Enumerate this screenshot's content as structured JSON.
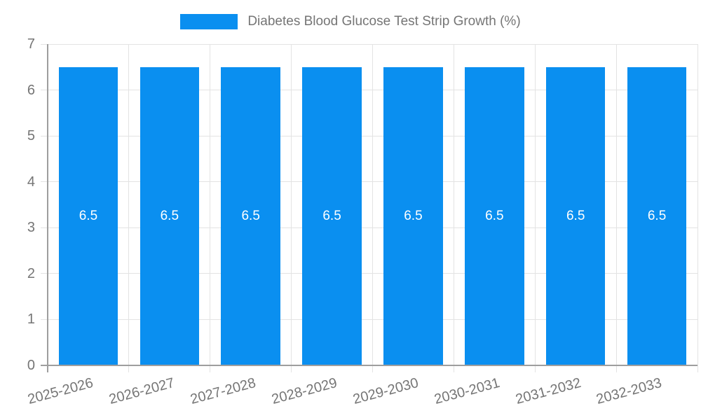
{
  "chart_data": {
    "type": "bar",
    "title": "Diabetes Blood Glucose Test Strip Growth (%)",
    "categories": [
      "2025-2026",
      "2026-2027",
      "2027-2028",
      "2028-2029",
      "2029-2030",
      "2030-2031",
      "2031-2032",
      "2032-2033"
    ],
    "values": [
      6.5,
      6.5,
      6.5,
      6.5,
      6.5,
      6.5,
      6.5,
      6.5
    ],
    "bar_value_labels": [
      "6.5",
      "6.5",
      "6.5",
      "6.5",
      "6.5",
      "6.5",
      "6.5",
      "6.5"
    ],
    "xlabel": "",
    "ylabel": "",
    "ylim": [
      0,
      7
    ],
    "yticks": [
      0,
      1,
      2,
      3,
      4,
      5,
      6,
      7
    ],
    "grid": true,
    "legend_position": "top-center",
    "x_tick_rotation_deg": -15,
    "bar_color": "#0a8ff0",
    "bar_label_color": "#ffffff",
    "tick_label_color": "#757575",
    "grid_color": "#e3e3e3",
    "axis_color": "#9e9e9e"
  }
}
